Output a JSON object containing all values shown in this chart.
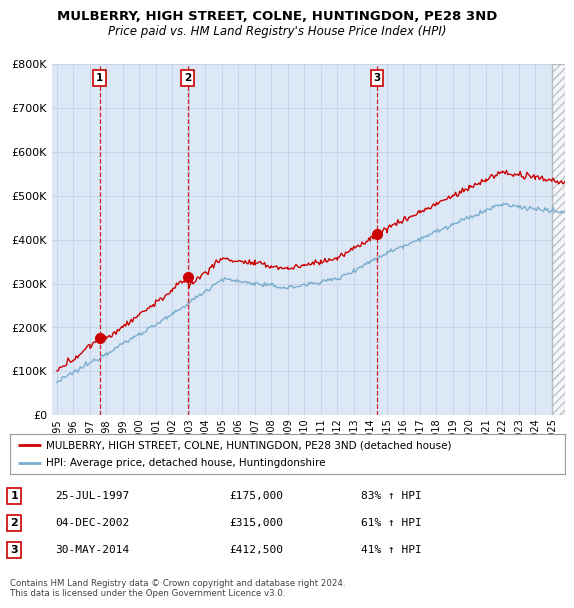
{
  "title": "MULBERRY, HIGH STREET, COLNE, HUNTINGDON, PE28 3ND",
  "subtitle": "Price paid vs. HM Land Registry's House Price Index (HPI)",
  "sale_prices": [
    175000,
    315000,
    412500
  ],
  "sale_labels": [
    "1",
    "2",
    "3"
  ],
  "sale_pct": [
    "83% ↑ HPI",
    "61% ↑ HPI",
    "41% ↑ HPI"
  ],
  "sale_date_labels": [
    "25-JUL-1997",
    "04-DEC-2002",
    "30-MAY-2014"
  ],
  "sale_price_labels": [
    "£175,000",
    "£315,000",
    "£412,500"
  ],
  "sale_date_nums": [
    1997.58,
    2002.92,
    2014.41
  ],
  "red_line_color": "#cc0000",
  "blue_line_color": "#7aadcf",
  "sale_marker_color": "#cc0000",
  "vline_color": "#cc0000",
  "grid_color": "#c8d4e8",
  "background_color": "#ffffff",
  "plot_bg_color": "#dce8f5",
  "legend_label_red": "MULBERRY, HIGH STREET, COLNE, HUNTINGDON, PE28 3ND (detached house)",
  "legend_label_blue": "HPI: Average price, detached house, Huntingdonshire",
  "footer": "Contains HM Land Registry data © Crown copyright and database right 2024.\nThis data is licensed under the Open Government Licence v3.0.",
  "ylim": [
    0,
    800000
  ],
  "yticks": [
    0,
    100000,
    200000,
    300000,
    400000,
    500000,
    600000,
    700000,
    800000
  ],
  "ytick_labels": [
    "£0",
    "£100K",
    "£200K",
    "£300K",
    "£400K",
    "£500K",
    "£600K",
    "£700K",
    "£800K"
  ],
  "xmin": 1994.7,
  "xmax": 2025.8,
  "hatch_start": 2025.0
}
